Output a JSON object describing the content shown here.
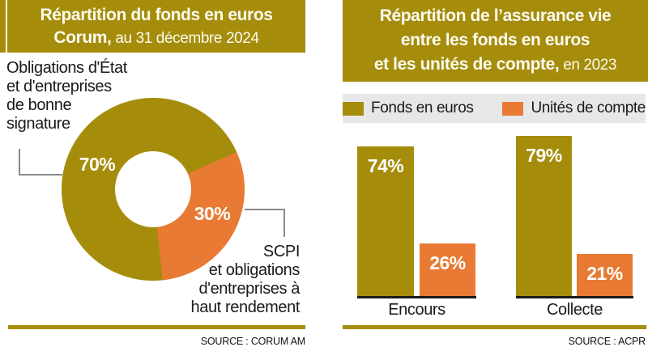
{
  "accent_colors": {
    "olive": "#A58D0B",
    "orange": "#E87A33",
    "legend_bg": "#E7E7E7",
    "connector": "#8A8A8A",
    "baseline": "#1A1A1A"
  },
  "left_panel": {
    "title_line1": "Répartition du fonds en euros",
    "title_line2_bold": "Corum,",
    "title_line2_rest": " au 31 décembre 2024",
    "label_top": [
      "Obligations d'État",
      "et d'entreprises",
      "de bonne",
      "signature"
    ],
    "label_bottom": [
      "SCPI",
      "et obligations",
      "d'entreprises à",
      "haut rendement"
    ],
    "source": "SOURCE : CORUM AM"
  },
  "right_panel": {
    "title_line1": "Répartition de l’assurance vie",
    "title_line2": "entre les fonds en euros",
    "title_line3_bold": "et les unités de compte,",
    "title_line3_rest": " en 2023",
    "source": "SOURCE : ACPR"
  },
  "chart_data": [
    {
      "type": "pie",
      "subtype": "donut",
      "title": "Répartition du fonds en euros Corum, au 31 décembre 2024",
      "labels": [
        "Obligations d'État et d'entreprises de bonne signature",
        "SCPI et obligations d'entreprises à haut rendement"
      ],
      "values": [
        70,
        30
      ],
      "value_labels": [
        "70%",
        "30%"
      ],
      "colors": [
        "#A58D0B",
        "#E87A33"
      ],
      "start_angle_deg_from_top": 66,
      "legend_position": "callouts"
    },
    {
      "type": "bar",
      "title": "Répartition de l’assurance vie entre les fonds en euros et les unités de compte, en 2023",
      "categories": [
        "Encours",
        "Collecte"
      ],
      "series": [
        {
          "name": "Fonds en euros",
          "color": "#A58D0B",
          "values": [
            74,
            79
          ]
        },
        {
          "name": "Unités de compte",
          "color": "#E87A33",
          "values": [
            26,
            21
          ]
        }
      ],
      "ylim": [
        0,
        100
      ],
      "grid": false,
      "legend_position": "top"
    }
  ]
}
